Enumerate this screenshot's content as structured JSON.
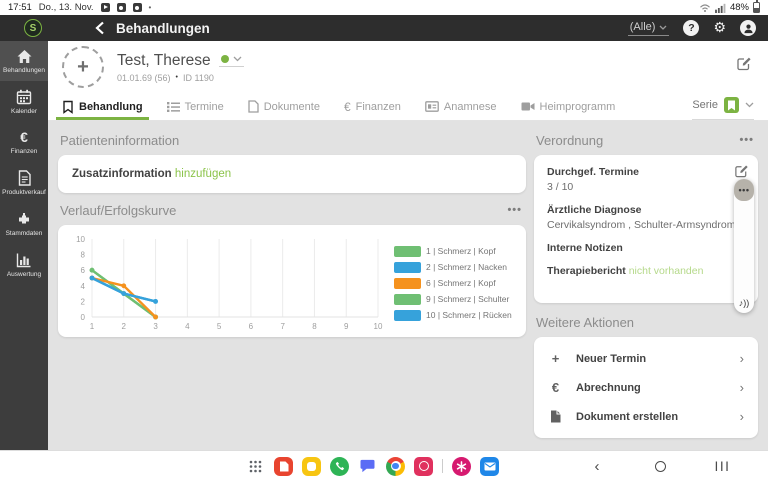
{
  "colors": {
    "accent": "#7cb342",
    "accent_light": "#8bc34a",
    "accent_pale": "#b5d98a",
    "appbar_bg": "#2d2d2d",
    "sidebar_bg": "#3d3d3d",
    "content_bg": "#e2e2e2"
  },
  "icons": {
    "euro": "€",
    "plus": "+",
    "chevron_right": "›",
    "back_chevron": "‹",
    "music_note": "♪))",
    "gear": "⚙",
    "question_mark": "?",
    "dots": "•••",
    "recents": "|||",
    "dot": "•"
  },
  "status_bar": {
    "time": "17:51",
    "date": "Do., 13. Nov.",
    "battery_percent": "48%"
  },
  "app_bar": {
    "logo_letter": "S",
    "title": "Behandlungen",
    "filter_selected": "(Alle)"
  },
  "sidebar": {
    "items": [
      {
        "label": "Behandlungen",
        "icon": "home-icon",
        "active": true
      },
      {
        "label": "Kalender",
        "icon": "calendar-icon",
        "active": false
      },
      {
        "label": "Finanzen",
        "icon": "euro-icon",
        "active": false
      },
      {
        "label": "Produktverkauf",
        "icon": "document-icon",
        "active": false
      },
      {
        "label": "Stammdaten",
        "icon": "connector-icon",
        "active": false
      },
      {
        "label": "Auswertung",
        "icon": "bar-chart-icon",
        "active": false
      }
    ]
  },
  "patient_header": {
    "name": "Test, Therese",
    "birth_and_age": "01.01.69 (56)",
    "id": "ID 1190"
  },
  "tabs": {
    "items": [
      {
        "label": "Behandlung",
        "active": true
      },
      {
        "label": "Termine",
        "active": false
      },
      {
        "label": "Dokumente",
        "active": false
      },
      {
        "label": "Finanzen",
        "active": false
      },
      {
        "label": "Anamnese",
        "active": false
      },
      {
        "label": "Heimprogramm",
        "active": false
      }
    ],
    "serie_label": "Serie"
  },
  "patient_info": {
    "section_title": "Patienteninformation",
    "label": "Zusatzinformation",
    "action_link": "hinzufügen"
  },
  "verlauf": {
    "section_title": "Verlauf/Erfolgskurve"
  },
  "chart_data": {
    "type": "line",
    "x": [
      1,
      2,
      3
    ],
    "xlim": [
      1,
      10
    ],
    "ylim": [
      0,
      10
    ],
    "x_ticks": [
      1,
      2,
      3,
      4,
      5,
      6,
      7,
      8,
      9,
      10
    ],
    "y_ticks": [
      0,
      2,
      4,
      6,
      8,
      10
    ],
    "grid": "vertical",
    "legend_position": "right",
    "series": [
      {
        "name": "1 | Schmerz | Kopf",
        "color": "#6fbf73",
        "values": [
          6,
          3,
          0
        ]
      },
      {
        "name": "2 | Schmerz | Nacken",
        "color": "#36a2db",
        "values": [
          5,
          3,
          2
        ]
      },
      {
        "name": "6 | Schmerz | Kopf",
        "color": "#f5921e",
        "values": [
          5,
          4,
          0
        ]
      },
      {
        "name": "9 | Schmerz | Schulter",
        "color": "#6fbf73",
        "values": [
          6,
          3,
          0
        ]
      },
      {
        "name": "10 | Schmerz | Rücken",
        "color": "#36a2db",
        "values": [
          5,
          3,
          2
        ]
      }
    ]
  },
  "verordnung": {
    "section_title": "Verordnung",
    "termine_label": "Durchgef. Termine",
    "termine_value": "3 / 10",
    "diagnose_label": "Ärztliche Diagnose",
    "diagnose_value": "Cervikalsyndrom , Schulter-Armsyndrom",
    "notizen_label": "Interne Notizen",
    "bericht_label": "Therapiebericht",
    "bericht_value": "nicht vorhanden"
  },
  "weitere_aktionen": {
    "section_title": "Weitere Aktionen",
    "items": [
      {
        "label": "Neuer Termin"
      },
      {
        "label": "Abrechnung"
      },
      {
        "label": "Dokument erstellen"
      }
    ]
  }
}
